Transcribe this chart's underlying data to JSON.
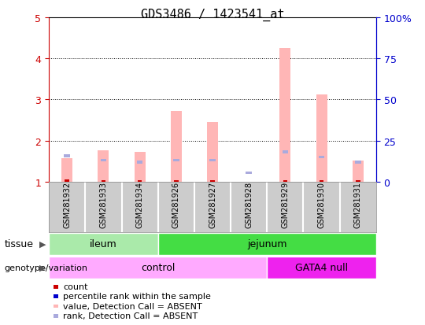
{
  "title": "GDS3486 / 1423541_at",
  "samples": [
    "GSM281932",
    "GSM281933",
    "GSM281934",
    "GSM281926",
    "GSM281927",
    "GSM281928",
    "GSM281929",
    "GSM281930",
    "GSM281931"
  ],
  "pink_bar_heights": [
    1.58,
    1.77,
    1.73,
    2.71,
    2.46,
    1.0,
    4.24,
    3.12,
    1.51
  ],
  "blue_marker_y": [
    1.63,
    1.52,
    1.48,
    1.52,
    1.52,
    1.22,
    1.72,
    1.6,
    1.47
  ],
  "red_bar_heights": [
    1.05,
    1.03,
    1.03,
    1.03,
    1.03,
    1.0,
    1.03,
    1.03,
    1.03
  ],
  "tissue_groups": [
    {
      "label": "ileum",
      "start": 0,
      "end": 3,
      "color": "#aaeaaa"
    },
    {
      "label": "jejunum",
      "start": 3,
      "end": 9,
      "color": "#44dd44"
    }
  ],
  "genotype_groups": [
    {
      "label": "control",
      "start": 0,
      "end": 6,
      "color": "#ffaaff"
    },
    {
      "label": "GATA4 null",
      "start": 6,
      "end": 9,
      "color": "#ee22ee"
    }
  ],
  "ylim": [
    1,
    5
  ],
  "yticks_left": [
    1,
    2,
    3,
    4,
    5
  ],
  "left_axis_color": "#cc0000",
  "right_axis_color": "#0000cc",
  "legend_items": [
    {
      "label": "count",
      "color": "#cc0000"
    },
    {
      "label": "percentile rank within the sample",
      "color": "#0000cc"
    },
    {
      "label": "value, Detection Call = ABSENT",
      "color": "#ffb6b6"
    },
    {
      "label": "rank, Detection Call = ABSENT",
      "color": "#aaaadd"
    }
  ],
  "pink_color": "#ffb6b6",
  "blue_marker_color": "#aaaadd",
  "red_marker_color": "#cc0000",
  "bar_width": 0.3,
  "bg_color": "#ffffff",
  "grid_color": "#000000",
  "sample_bg_color": "#cccccc",
  "tissue_label": "tissue",
  "geno_label": "genotype/variation"
}
